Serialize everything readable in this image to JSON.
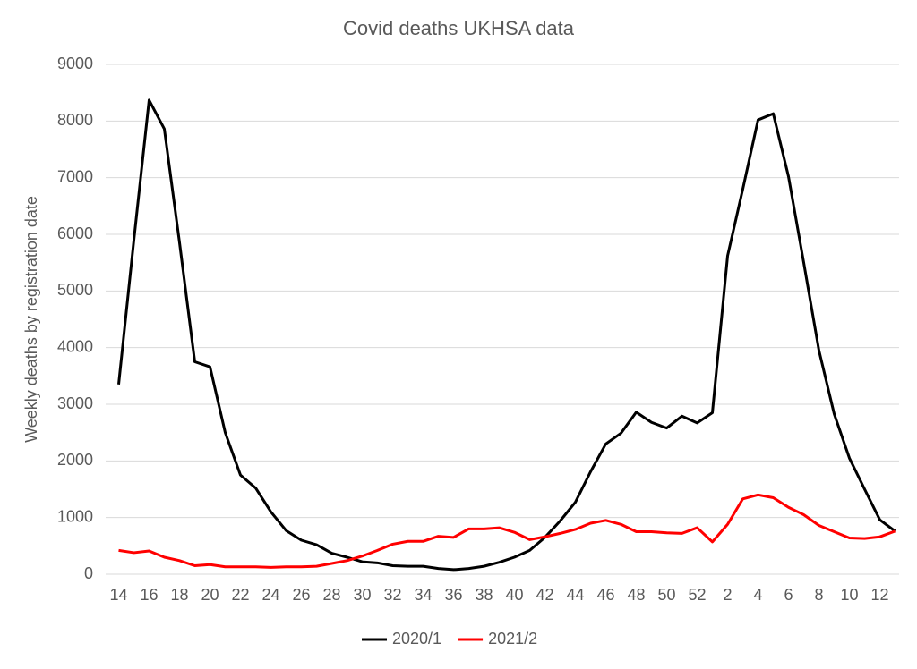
{
  "chart_data": {
    "type": "line",
    "title": "Covid deaths UKHSA data",
    "y_label": "Weekly deaths by registration date",
    "categories": [
      "14",
      null,
      "16",
      null,
      "18",
      null,
      "20",
      null,
      "22",
      null,
      "24",
      null,
      "26",
      null,
      "28",
      null,
      "30",
      null,
      "32",
      null,
      "34",
      null,
      "36",
      null,
      "38",
      null,
      "40",
      null,
      "42",
      null,
      "44",
      null,
      "46",
      null,
      "48",
      null,
      "50",
      null,
      "52",
      null,
      "2",
      null,
      "4",
      null,
      "6",
      null,
      "8",
      null,
      "10",
      null,
      "12",
      null
    ],
    "series": [
      {
        "name": "2020/1",
        "color": "#000000",
        "values": [
          3350,
          5900,
          8370,
          7860,
          5850,
          3750,
          3660,
          2500,
          1750,
          1520,
          1100,
          770,
          600,
          520,
          370,
          300,
          220,
          200,
          150,
          140,
          140,
          100,
          80,
          100,
          140,
          210,
          300,
          420,
          650,
          940,
          1270,
          1810,
          2300,
          2490,
          2860,
          2680,
          2580,
          2790,
          2670,
          2850,
          5620,
          6800,
          8020,
          8130,
          7020,
          5500,
          3950,
          2830,
          2050,
          1500,
          960,
          760
        ]
      },
      {
        "name": "2021/2",
        "color": "#ff0000",
        "values": [
          420,
          380,
          410,
          300,
          240,
          150,
          170,
          130,
          130,
          130,
          120,
          130,
          130,
          140,
          190,
          240,
          320,
          420,
          530,
          580,
          580,
          670,
          650,
          800,
          800,
          820,
          740,
          610,
          660,
          720,
          790,
          900,
          950,
          880,
          750,
          750,
          730,
          720,
          820,
          570,
          880,
          1330,
          1400,
          1350,
          1180,
          1050,
          860,
          750,
          640,
          630,
          660,
          760
        ]
      }
    ],
    "ylim": [
      0,
      9000
    ],
    "yticks": [
      0,
      1000,
      2000,
      3000,
      4000,
      5000,
      6000,
      7000,
      8000,
      9000
    ],
    "grid": true,
    "legend": "bottom"
  }
}
